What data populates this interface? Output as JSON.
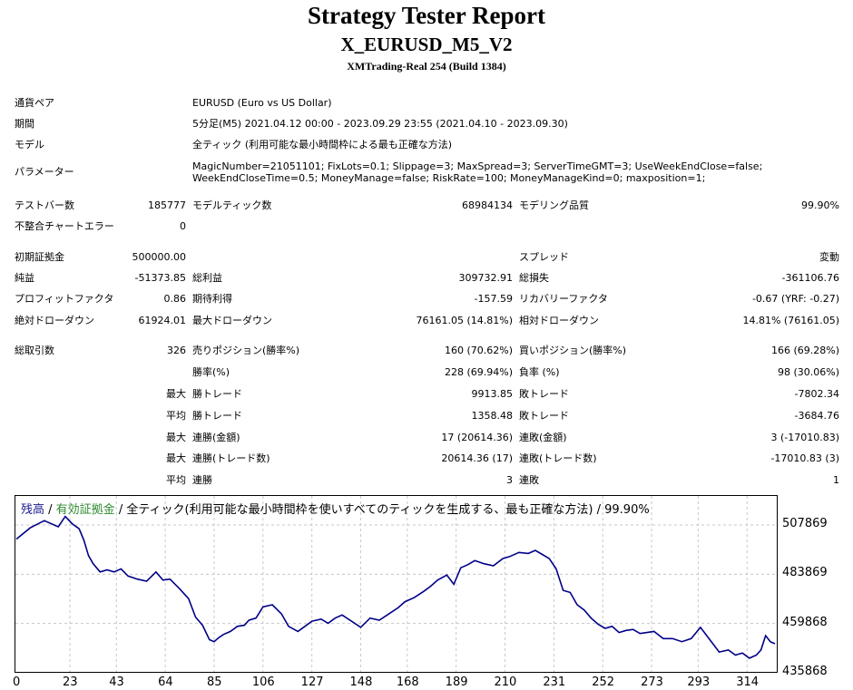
{
  "report": {
    "title": "Strategy Tester Report",
    "expert": "X_EURUSD_M5_V2",
    "server": "XMTrading-Real 254 (Build 1384)"
  },
  "info": {
    "symbol_label": "通貨ペア",
    "symbol_value": "EURUSD (Euro vs US Dollar)",
    "period_label": "期間",
    "period_value": "5分足(M5) 2021.04.12 00:00 - 2023.09.29 23:55 (2021.04.10 - 2023.09.30)",
    "model_label": "モデル",
    "model_value": "全ティック (利用可能な最小時間枠による最も正確な方法)",
    "params_label": "パラメーター",
    "params_line1": "MagicNumber=21051101; FixLots=0.1; Slippage=3; MaxSpread=3; ServerTimeGMT=3; UseWeekEndClose=false;",
    "params_line2": "WeekEndCloseTime=0.5; MoneyManage=false; RiskRate=100; MoneyManageKind=0; maxposition=1;"
  },
  "stats": {
    "bars_label": "テストバー数",
    "bars_value": "185777",
    "ticks_label": "モデルティック数",
    "ticks_value": "68984134",
    "quality_label": "モデリング品質",
    "quality_value": "99.90%",
    "mismatch_label": "不整合チャートエラー",
    "mismatch_value": "0",
    "deposit_label": "初期証拠金",
    "deposit_value": "500000.00",
    "spread_label": "スプレッド",
    "spread_value": "変動",
    "net_label": "純益",
    "net_value": "-51373.85",
    "gross_profit_label": "総利益",
    "gross_profit_value": "309732.91",
    "gross_loss_label": "総損失",
    "gross_loss_value": "-361106.76",
    "pf_label": "プロフィットファクタ",
    "pf_value": "0.86",
    "expected_label": "期待利得",
    "expected_value": "-157.59",
    "recovery_label": "リカバリーファクタ",
    "recovery_value": "-0.67 (YRF: -0.27)",
    "abs_dd_label": "絶対ドローダウン",
    "abs_dd_value": "61924.01",
    "max_dd_label": "最大ドローダウン",
    "max_dd_value": "76161.05 (14.81%)",
    "rel_dd_label": "相対ドローダウン",
    "rel_dd_value": "14.81% (76161.05)",
    "trades_label": "総取引数",
    "trades_value": "326",
    "short_label": "売りポジション(勝率%)",
    "short_value": "160 (70.62%)",
    "long_label": "買いポジション(勝率%)",
    "long_value": "166 (69.28%)",
    "winrate_label": "勝率(%)",
    "winrate_value": "228 (69.94%)",
    "lossrate_label": "負率 (%)",
    "lossrate_value": "98 (30.06%)",
    "max_prefix": "最大",
    "avg_prefix": "平均",
    "win_trade_label": "勝トレード",
    "loss_trade_label": "敗トレード",
    "max_win_value": "9913.85",
    "max_loss_value": "-7802.34",
    "avg_win_value": "1358.48",
    "avg_loss_value": "-3684.76",
    "cons_win_amt_label": "連勝(金額)",
    "cons_win_amt_value": "17 (20614.36)",
    "cons_loss_amt_label": "連敗(金額)",
    "cons_loss_amt_value": "3 (-17010.83)",
    "cons_win_cnt_label": "連勝(トレード数)",
    "cons_win_cnt_value": "20614.36 (17)",
    "cons_loss_cnt_label": "連敗(トレード数)",
    "cons_loss_cnt_value": "-17010.83 (3)",
    "avg_win_streak_label": "連勝",
    "avg_win_streak_value": "3",
    "avg_loss_streak_label": "連敗",
    "avg_loss_streak_value": "1"
  },
  "chart_data": {
    "type": "line",
    "legend_balance": "残高",
    "legend_sep1": " / ",
    "legend_equity": "有効証拠金",
    "legend_rest": " / 全ティック(利用可能な最小時間枠を使いすべてのティックを生成する、最も正確な方法) / 99.90%",
    "colors": {
      "balance": "#1a1a8c",
      "equity": "#2e8b2e",
      "line": "#000088"
    },
    "x_ticks": [
      "0",
      "23",
      "43",
      "64",
      "85",
      "106",
      "127",
      "148",
      "168",
      "189",
      "210",
      "231",
      "252",
      "273",
      "293",
      "314"
    ],
    "y_ticks": [
      "507869",
      "483869",
      "459868",
      "435868"
    ],
    "ylim": [
      435868,
      507869
    ],
    "xlim": [
      0,
      326
    ],
    "series": [
      {
        "x": [
          0,
          6,
          12,
          18,
          21,
          24,
          27,
          29,
          31,
          33,
          36,
          39,
          42,
          45,
          48,
          52,
          56,
          60,
          63,
          66,
          70,
          74,
          77,
          80,
          83,
          85,
          87,
          89,
          92,
          95,
          98,
          100,
          103,
          106,
          110,
          114,
          117,
          121,
          124,
          127,
          131,
          134,
          137,
          140,
          144,
          148,
          152,
          156,
          160,
          164,
          167,
          171,
          175,
          178,
          181,
          185,
          188,
          191,
          194,
          197,
          201,
          205,
          209,
          212,
          216,
          220,
          223,
          226,
          229,
          232,
          235,
          238,
          241,
          244,
          247,
          250,
          253,
          256,
          259,
          262,
          265,
          268,
          271,
          274,
          278,
          282,
          286,
          290,
          294,
          298,
          302,
          306,
          309,
          312,
          315,
          318,
          320,
          322,
          324,
          326
        ],
        "y": [
          501000,
          506500,
          510000,
          507000,
          512000,
          508500,
          506000,
          500500,
          493000,
          489000,
          485000,
          486000,
          485000,
          486500,
          483000,
          481500,
          480500,
          485000,
          481000,
          481500,
          477000,
          472000,
          463000,
          459000,
          452000,
          451000,
          453000,
          454500,
          456000,
          458500,
          459000,
          461500,
          462500,
          468000,
          469000,
          464500,
          458500,
          456000,
          458500,
          461000,
          462000,
          460000,
          462500,
          464000,
          461000,
          458000,
          462500,
          461500,
          464500,
          467500,
          470500,
          472500,
          475500,
          478000,
          481000,
          483500,
          479000,
          487000,
          488500,
          490500,
          489000,
          488000,
          491500,
          492500,
          494500,
          494000,
          495500,
          493500,
          491500,
          486500,
          476000,
          475000,
          469000,
          466500,
          462500,
          459500,
          457500,
          458500,
          455500,
          456500,
          457000,
          455000,
          455500,
          456000,
          452500,
          452500,
          451000,
          452500,
          458000,
          452000,
          446000,
          447000,
          444500,
          445500,
          443000,
          444500,
          447000,
          454000,
          451000,
          450000
        ]
      }
    ]
  }
}
